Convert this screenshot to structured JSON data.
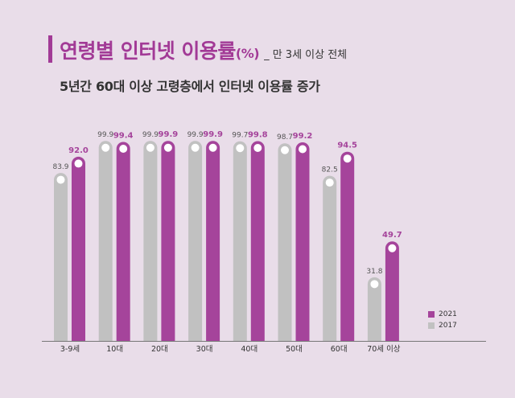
{
  "title": "연령별 인터넷 이용률",
  "title_unit": "(%)",
  "title_note": "_ 만 3세 이상 전체",
  "subtitle": "5년간 60대 이상 고령층에서 인터넷 이용률 증가",
  "colors": {
    "s2021": "#a5449b",
    "s2017": "#c1c1c1",
    "background": "#e9dde9"
  },
  "chart_data": {
    "type": "bar",
    "categories": [
      "3-9세",
      "10대",
      "20대",
      "30대",
      "40대",
      "50대",
      "60대",
      "70세 이상"
    ],
    "series": [
      {
        "name": "2017",
        "values": [
          83.9,
          99.9,
          99.9,
          99.9,
          99.7,
          98.7,
          82.5,
          31.8
        ]
      },
      {
        "name": "2021",
        "values": [
          92.0,
          99.4,
          99.9,
          99.9,
          99.8,
          99.2,
          94.5,
          49.7
        ]
      }
    ],
    "data_labels_2017": [
      "83.9",
      "99.9",
      "99.9",
      "99.9",
      "99.7",
      "98.7",
      "82.5",
      "31.8"
    ],
    "data_labels_2021": [
      "92.0",
      "99.4",
      "99.9",
      "99.9",
      "99.8",
      "99.2",
      "94.5",
      "49.7"
    ],
    "ylim": [
      0,
      100
    ],
    "legend": [
      "2021",
      "2017"
    ],
    "legend_position": "bottom-right",
    "grid": false
  }
}
